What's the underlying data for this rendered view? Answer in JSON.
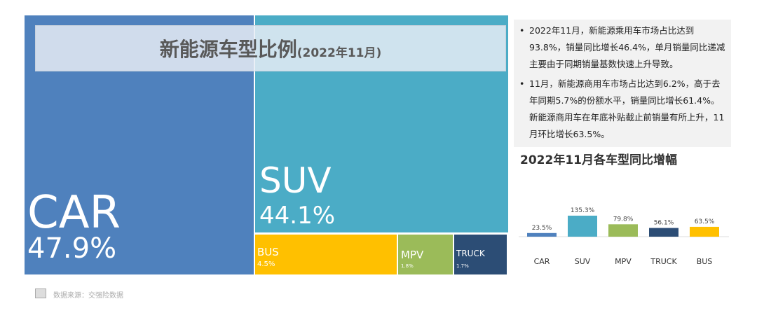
{
  "treemap": {
    "title": "新能源车型比例",
    "subtitle": "(2022年11月)",
    "tiles": [
      {
        "name": "CAR",
        "pct": "47.9%",
        "color": "#4f81bd"
      },
      {
        "name": "SUV",
        "pct": "44.1%",
        "color": "#4bacc6"
      },
      {
        "name": "BUS",
        "pct": "4.5%",
        "color": "#ffc000"
      },
      {
        "name": "MPV",
        "pct": "1.8%",
        "color": "#9bbb59"
      },
      {
        "name": "TRUCK",
        "pct": "1.7%",
        "color": "#2c4d75"
      }
    ]
  },
  "notes": [
    "2022年11月，新能源乘用车市场占比达到93.8%，销量同比增长46.4%，单月销量同比递减主要由于同期销量基数快速上升导致。",
    "11月，新能源商用车市场占比达到6.2%，高于去年同期5.7%的份额水平，销量同比增长61.4%。新能源商用车在年底补贴截止前销量有所上升，11月环比增长63.5%。"
  ],
  "chart_data": {
    "type": "bar",
    "title": "2022年11月各车型同比增幅",
    "categories": [
      "CAR",
      "SUV",
      "MPV",
      "TRUCK",
      "BUS"
    ],
    "values": [
      23.5,
      135.3,
      79.8,
      56.1,
      63.5
    ],
    "labels": [
      "23.5%",
      "135.3%",
      "79.8%",
      "56.1%",
      "63.5%"
    ],
    "colors": [
      "#4f81bd",
      "#4bacc6",
      "#9bbb59",
      "#2c4d75",
      "#ffc000"
    ]
  },
  "source": "数据来源：交强险数据"
}
